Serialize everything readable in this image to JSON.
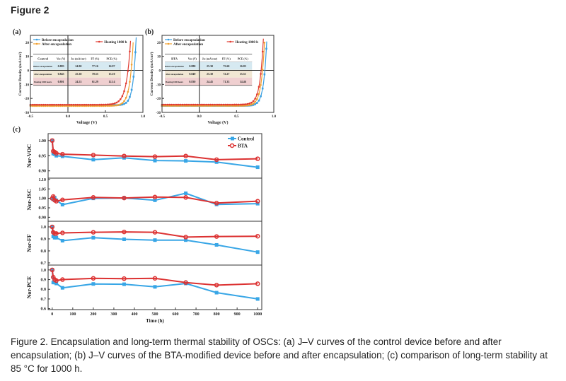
{
  "figure_title": "Figure 2",
  "caption": "Figure 2. Encapsulation and long-term thermal stability of OSCs: (a) J–V curves of the control device before and after encapsulation; (b) J–V curves of the BTA-modified device before and after encapsulation; (c) comparison of long-term stability at 85 °C for 1000 h.",
  "chart_data": [
    {
      "type": "line",
      "panel": "(a)",
      "xlabel": "Voltage (V)",
      "ylabel": "Current Density (mA/cm²)",
      "xlim": [
        -0.5,
        1.0
      ],
      "ylim": [
        -30,
        25
      ],
      "xticks": [
        "-0.5",
        "0.0",
        "0.5",
        "1.0"
      ],
      "yticks": [
        "20",
        "10",
        "0",
        "-10",
        "-20",
        "-30"
      ],
      "legend": [
        "Before encapsulation",
        "After encapsulation",
        "Heating 1000 h"
      ],
      "colors": [
        "#3a9fe0",
        "#f0a030",
        "#e03a30"
      ],
      "table": {
        "header": [
          "Control",
          "Voc (V)",
          "Jsc (mA/cm²)",
          "FF (%)",
          "PCE (%)"
        ],
        "rows": [
          [
            "Before encapsulation",
            "0.883",
            "24.90",
            "77.16",
            "16.97"
          ],
          [
            "After encapsulation",
            "0.843",
            "25.38",
            "70.55",
            "15.10"
          ],
          [
            "Heating 1000 hours",
            "0.801",
            "24.53",
            "61.29",
            "12.14"
          ]
        ]
      },
      "series": [
        {
          "name": "Before encapsulation",
          "voc": 0.883,
          "jsc": 24.9,
          "ff": 77.16
        },
        {
          "name": "After encapsulation",
          "voc": 0.843,
          "jsc": 25.38,
          "ff": 70.55
        },
        {
          "name": "Heating 1000 h",
          "voc": 0.801,
          "jsc": 24.53,
          "ff": 61.29
        }
      ]
    },
    {
      "type": "line",
      "panel": "(b)",
      "xlabel": "Voltage (V)",
      "ylabel": "Current Density (mA/cm²)",
      "xlim": [
        -0.5,
        1.0
      ],
      "ylim": [
        -30,
        25
      ],
      "xticks": [
        "-0.5",
        "0.0",
        "0.5",
        "1.0"
      ],
      "yticks": [
        "20",
        "10",
        "0",
        "-10",
        "-20",
        "-30"
      ],
      "legend": [
        "Before encapsulation",
        "After encapsulation",
        "Heating 1000 h"
      ],
      "colors": [
        "#3a9fe0",
        "#f0a030",
        "#e03a30"
      ],
      "table": {
        "header": [
          "BTA",
          "Voc (V)",
          "Jsc (mA/cm²)",
          "FF (%)",
          "PCE (%)"
        ],
        "rows": [
          [
            "Before encapsulation",
            "0.880",
            "25.30",
            "75.60",
            "16.83"
          ],
          [
            "After encapsulation",
            "0.849",
            "25.30",
            "72.27",
            "15.51"
          ],
          [
            "Heating 1000 hours",
            "0.830",
            "24.45",
            "71.33",
            "14.46"
          ]
        ]
      },
      "series": [
        {
          "name": "Before encapsulation",
          "voc": 0.88,
          "jsc": 25.3,
          "ff": 75.6
        },
        {
          "name": "After encapsulation",
          "voc": 0.849,
          "jsc": 25.3,
          "ff": 72.27
        },
        {
          "name": "Heating 1000 h",
          "voc": 0.83,
          "jsc": 24.45,
          "ff": 71.33
        }
      ]
    },
    {
      "type": "line",
      "panel": "(c)",
      "xlabel": "Time (h)",
      "xlim": [
        -20,
        1020
      ],
      "xticks": [
        "0",
        "100",
        "200",
        "300",
        "400",
        "500",
        "600",
        "700",
        "800",
        "900",
        "1000"
      ],
      "x": [
        0,
        5,
        12,
        20,
        50,
        200,
        350,
        500,
        650,
        800,
        1000
      ],
      "legend": [
        "Control",
        "BTA"
      ],
      "colors": [
        "#38a6e6",
        "#dc3232"
      ],
      "subplots": [
        {
          "ylabel": "Nor-VOC",
          "ylim": [
            0.876,
            1.023
          ],
          "yticks": [
            "0.90",
            "0.95",
            "1.00"
          ],
          "series": [
            {
              "name": "Control",
              "values": [
                1.0,
                0.957,
                0.955,
                0.95,
                0.948,
                0.937,
                0.943,
                0.934,
                0.933,
                0.929,
                0.912
              ]
            },
            {
              "name": "BTA",
              "values": [
                1.0,
                0.965,
                0.962,
                0.958,
                0.955,
                0.952,
                0.949,
                0.947,
                0.949,
                0.937,
                0.94
              ]
            }
          ]
        },
        {
          "ylabel": "Nor-JSC",
          "ylim": [
            0.879,
            1.107
          ],
          "yticks": [
            "0.90",
            "0.95",
            "1.00",
            "1.05",
            "1.10"
          ],
          "series": [
            {
              "name": "Control",
              "values": [
                1.0,
                0.995,
                1.003,
                0.99,
                0.967,
                1.0,
                1.002,
                0.99,
                1.027,
                0.968,
                0.972
              ]
            },
            {
              "name": "BTA",
              "values": [
                1.0,
                1.01,
                0.99,
                0.985,
                0.992,
                1.005,
                1.002,
                1.007,
                1.005,
                0.975,
                0.985
              ]
            }
          ]
        },
        {
          "ylabel": "Nor-FF",
          "ylim": [
            0.682,
            1.047
          ],
          "yticks": [
            "0.7",
            "0.8",
            "0.9",
            "1.0"
          ],
          "series": [
            {
              "name": "Control",
              "values": [
                1.0,
                0.92,
                0.91,
                0.91,
                0.885,
                0.91,
                0.897,
                0.89,
                0.89,
                0.85,
                0.79
              ]
            },
            {
              "name": "BTA",
              "values": [
                1.0,
                0.955,
                0.945,
                0.945,
                0.95,
                0.955,
                0.958,
                0.955,
                0.915,
                0.92,
                0.922
              ]
            }
          ]
        },
        {
          "ylabel": "Nor-PCE",
          "ylim": [
            0.59,
            1.05
          ],
          "yticks": [
            "0.6",
            "0.7",
            "0.8",
            "0.9",
            "1.0"
          ],
          "series": [
            {
              "name": "Control",
              "values": [
                1.0,
                0.87,
                0.87,
                0.86,
                0.815,
                0.855,
                0.852,
                0.825,
                0.86,
                0.765,
                0.7
              ]
            },
            {
              "name": "BTA",
              "values": [
                1.0,
                0.925,
                0.9,
                0.89,
                0.9,
                0.913,
                0.91,
                0.913,
                0.87,
                0.843,
                0.857
              ]
            }
          ]
        }
      ]
    }
  ]
}
